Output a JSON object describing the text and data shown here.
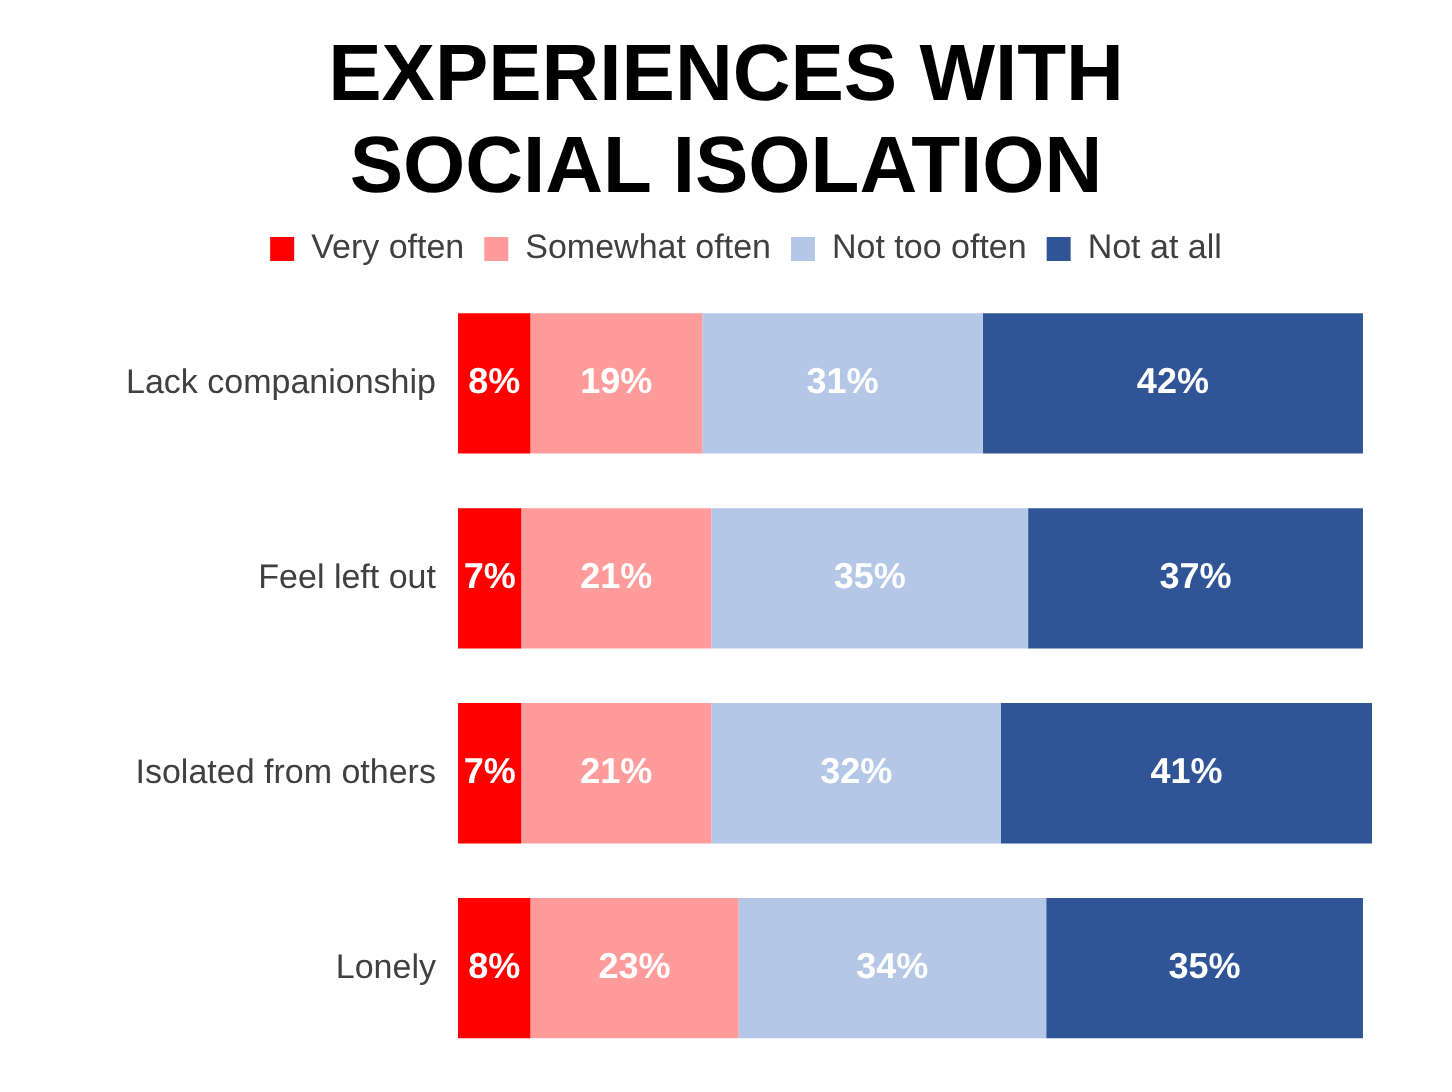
{
  "chart_data": {
    "type": "bar",
    "orientation": "horizontal",
    "stacked": true,
    "title": "EXPERIENCES WITH SOCIAL ISOLATION",
    "categories": [
      "Lack companionship",
      "Feel left out",
      "Isolated from others",
      "Lonely"
    ],
    "series": [
      {
        "name": "Very often",
        "color": "#ff0000",
        "values": [
          8,
          7,
          7,
          8
        ],
        "value_labels": [
          "8%",
          "7%",
          "7%",
          "8%"
        ]
      },
      {
        "name": "Somewhat often",
        "color": "#ff9b9b",
        "values": [
          19,
          21,
          21,
          23
        ],
        "value_labels": [
          "19%",
          "21%",
          "21%",
          "23%"
        ]
      },
      {
        "name": "Not too often",
        "color": "#b4c7e7",
        "values": [
          31,
          35,
          32,
          34
        ],
        "value_labels": [
          "31%",
          "35%",
          "32%",
          "34%"
        ]
      },
      {
        "name": "Not at all",
        "color": "#2f5597",
        "values": [
          42,
          37,
          41,
          35
        ],
        "value_labels": [
          "42%",
          "37%",
          "41%",
          "35%"
        ]
      }
    ],
    "tick_labels": "y",
    "legend": "top"
  }
}
